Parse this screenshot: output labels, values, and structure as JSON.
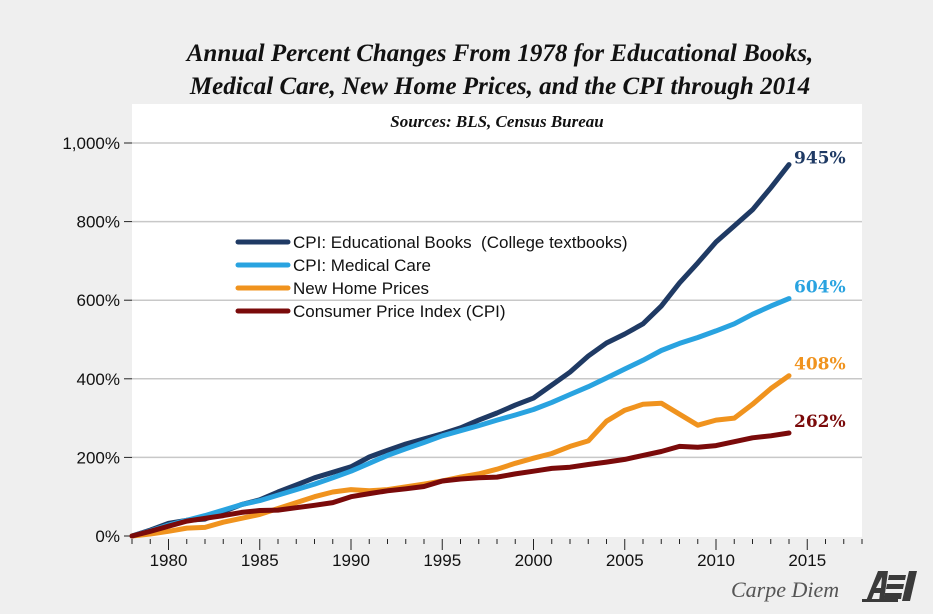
{
  "chart_data": {
    "type": "line",
    "title": [
      "Annual Percent Changes From 1978 for Educational Books,",
      "Medical Care, New Home Prices, and the CPI through 2014"
    ],
    "subtitle": "Sources: BLS, Census Bureau",
    "xlabel": "",
    "ylabel": "",
    "xlim": [
      1978,
      2018
    ],
    "ylim": [
      0,
      1000
    ],
    "grid": true,
    "legend_position": "upper-left-center",
    "y_ticks": [
      0,
      200,
      400,
      600,
      800,
      1000
    ],
    "y_tick_labels": [
      "0%",
      "200%",
      "400%",
      "600%",
      "800%",
      "1,000%"
    ],
    "x_ticks": [
      1980,
      1985,
      1990,
      1995,
      2000,
      2005,
      2010,
      2015
    ],
    "x_tick_labels": [
      "1980",
      "1985",
      "1990",
      "1995",
      "2000",
      "2005",
      "2010",
      "2015"
    ],
    "x": [
      1978,
      1979,
      1980,
      1981,
      1982,
      1983,
      1984,
      1985,
      1986,
      1987,
      1988,
      1989,
      1990,
      1991,
      1992,
      1993,
      1994,
      1995,
      1996,
      1997,
      1998,
      1999,
      2000,
      2001,
      2002,
      2003,
      2004,
      2005,
      2006,
      2007,
      2008,
      2009,
      2010,
      2011,
      2012,
      2013,
      2014
    ],
    "series": [
      {
        "name": "CPI: Educational Books  (College textbooks)",
        "color": "#1f3a64",
        "end_label": "945%",
        "values": [
          0,
          15,
          32,
          40,
          43,
          62,
          80,
          92,
          112,
          130,
          148,
          162,
          176,
          201,
          218,
          234,
          247,
          260,
          275,
          295,
          313,
          333,
          351,
          384,
          417,
          458,
          491,
          514,
          540,
          585,
          644,
          695,
          748,
          789,
          830,
          886,
          945
        ]
      },
      {
        "name": "CPI: Medical Care",
        "color": "#29a3e0",
        "end_label": "604%",
        "values": [
          0,
          13,
          28,
          40,
          52,
          66,
          80,
          90,
          104,
          118,
          132,
          148,
          165,
          185,
          205,
          222,
          238,
          255,
          268,
          281,
          295,
          308,
          322,
          340,
          360,
          380,
          402,
          425,
          447,
          472,
          490,
          505,
          522,
          540,
          564,
          585,
          604
        ]
      },
      {
        "name": "New Home Prices",
        "color": "#f0931e",
        "end_label": "408%",
        "values": [
          0,
          5,
          12,
          20,
          22,
          35,
          45,
          55,
          70,
          85,
          100,
          112,
          118,
          115,
          118,
          125,
          132,
          140,
          150,
          158,
          170,
          185,
          198,
          210,
          228,
          242,
          292,
          320,
          335,
          338,
          310,
          282,
          295,
          300,
          335,
          375,
          408
        ]
      },
      {
        "name": "Consumer Price Index (CPI)",
        "color": "#7a0a0a",
        "end_label": "262%",
        "values": [
          0,
          12,
          25,
          38,
          45,
          52,
          60,
          65,
          66,
          72,
          78,
          85,
          100,
          108,
          115,
          120,
          126,
          140,
          145,
          148,
          150,
          158,
          165,
          172,
          175,
          182,
          188,
          195,
          205,
          215,
          228,
          226,
          230,
          240,
          250,
          255,
          262
        ]
      }
    ]
  },
  "branding": {
    "blog_name": "Carpe Diem",
    "logo_text": "AEI"
  }
}
